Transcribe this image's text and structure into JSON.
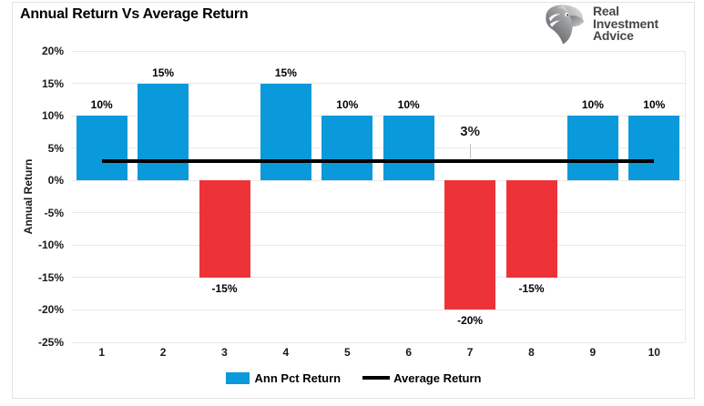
{
  "header": {
    "title": "Annual Return Vs Average Return",
    "logo": {
      "icon": "eagle-icon",
      "lines": [
        "Real",
        "Investment",
        "Advice"
      ]
    }
  },
  "chart_data": {
    "type": "bar",
    "title": "Annual Return Vs Average Return",
    "categories": [
      "1",
      "2",
      "3",
      "4",
      "5",
      "6",
      "7",
      "8",
      "9",
      "10"
    ],
    "series": [
      {
        "name": "Ann Pct Return",
        "type": "bar",
        "values": [
          10,
          15,
          -15,
          15,
          10,
          10,
          -20,
          -15,
          10,
          10
        ],
        "labels": [
          "10%",
          "15%",
          "-15%",
          "15%",
          "10%",
          "10%",
          "-20%",
          "-15%",
          "10%",
          "10%"
        ],
        "color_positive": "#0a99da",
        "color_negative": "#ee3338"
      },
      {
        "name": "Average Return",
        "type": "line",
        "value": 3,
        "label": "3%",
        "label_category_index": 6,
        "color": "#000000"
      }
    ],
    "ylabel": "Annual Return",
    "ylim": [
      -25,
      20
    ],
    "ytick_step": 5,
    "ytick_labels": [
      "20%",
      "15%",
      "10%",
      "5%",
      "0%",
      "-5%",
      "-10%",
      "-15%",
      "-20%",
      "-25%"
    ],
    "grid": "horizontal",
    "legend_position": "bottom"
  },
  "colors": {
    "bar_positive": "#0a99da",
    "bar_negative": "#ee3338",
    "average_line": "#000000",
    "gridline": "#e9e9e9",
    "chart_border": "#e3e3e3",
    "logo_text": "#44474b"
  }
}
